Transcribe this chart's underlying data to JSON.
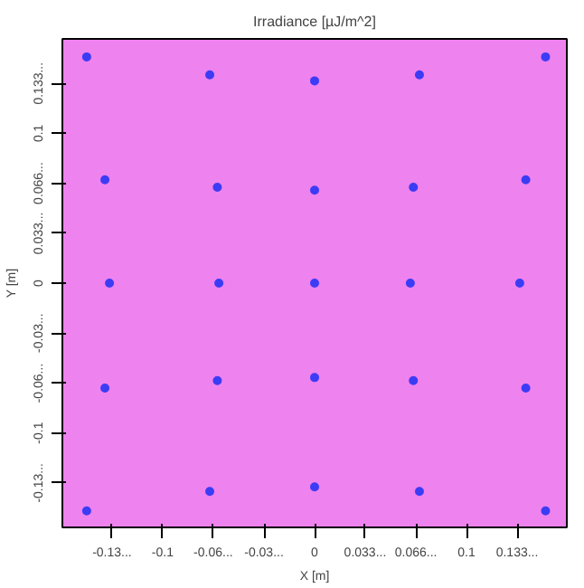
{
  "chart_data": {
    "type": "scatter",
    "title": "Irradiance [µJ/m^2]",
    "xlabel": "X [m]",
    "ylabel": "Y [m]",
    "xlim": [
      -0.166,
      0.166
    ],
    "ylim": [
      -0.163,
      0.163
    ],
    "xticks": [
      {
        "value": -0.1333,
        "label": "-0.13..."
      },
      -0.1,
      {
        "value": -0.0667,
        "label": "-0.06..."
      },
      {
        "value": -0.0333,
        "label": "-0.03..."
      },
      0,
      {
        "value": 0.0333,
        "label": "0.033..."
      },
      {
        "value": 0.0667,
        "label": "0.066..."
      },
      0.1,
      {
        "value": 0.1333,
        "label": "0.133..."
      }
    ],
    "yticks": [
      {
        "value": -0.1333,
        "label": "-0.13..."
      },
      -0.1,
      {
        "value": -0.0667,
        "label": "-0.06..."
      },
      {
        "value": -0.0333,
        "label": "-0.03..."
      },
      0,
      {
        "value": 0.0333,
        "label": "0.033..."
      },
      {
        "value": 0.0667,
        "label": "0.066..."
      },
      0.1,
      {
        "value": 0.1333,
        "label": "0.133..."
      }
    ],
    "grid": false,
    "marker": "circle",
    "series": [
      {
        "color": "#3c3cf5",
        "x": [
          -0.15,
          -0.069,
          0,
          0.069,
          0.152,
          -0.138,
          -0.064,
          0,
          0.065,
          0.139,
          -0.135,
          -0.063,
          0,
          0.063,
          0.135,
          -0.138,
          -0.064,
          0,
          0.065,
          0.139,
          -0.15,
          -0.069,
          0,
          0.069,
          0.152
        ],
        "values": [
          0.151,
          0.139,
          0.135,
          0.139,
          0.151,
          0.069,
          0.064,
          0.062,
          0.064,
          0.069,
          0,
          0,
          0,
          0,
          0,
          -0.07,
          -0.065,
          -0.063,
          -0.065,
          -0.07,
          -0.152,
          -0.139,
          -0.136,
          -0.139,
          -0.152
        ]
      }
    ]
  }
}
